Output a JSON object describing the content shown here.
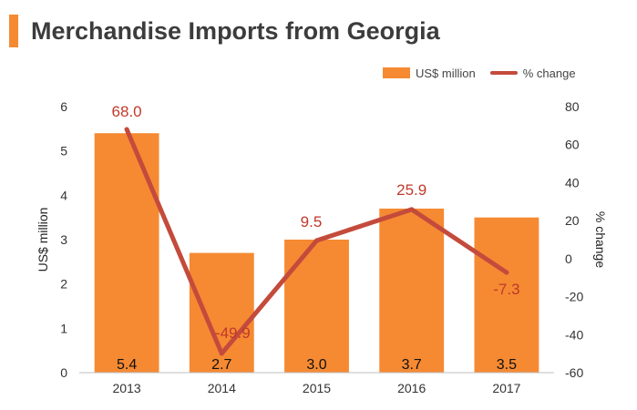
{
  "title": "Merchandise Imports from Georgia",
  "legend": {
    "bar_label": "US$ million",
    "line_label": "% change"
  },
  "colors": {
    "accent": "#f58a33",
    "bar": "#f58a33",
    "line": "#c44b3c",
    "line_label": "#c0392b"
  },
  "chart_data": {
    "type": "bar",
    "categories": [
      "2013",
      "2014",
      "2015",
      "2016",
      "2017"
    ],
    "series": [
      {
        "name": "US$ million",
        "type": "bar",
        "axis": "left",
        "values": [
          5.4,
          2.7,
          3.0,
          3.7,
          3.5
        ]
      },
      {
        "name": "% change",
        "type": "line",
        "axis": "right",
        "values": [
          68.0,
          -49.9,
          9.5,
          25.9,
          -7.3
        ]
      }
    ],
    "bar_labels": [
      "5.4",
      "2.7",
      "3.0",
      "3.7",
      "3.5"
    ],
    "line_labels": [
      "68.0",
      "-49.9",
      "9.5",
      "25.9",
      "-7.3"
    ],
    "ylabel": "US$ million",
    "ylabel_right": "% change",
    "ylim": [
      0,
      6
    ],
    "ylim_right": [
      -60,
      80
    ],
    "yticks": [
      "0",
      "1",
      "2",
      "3",
      "4",
      "5",
      "6"
    ],
    "yticks_right": [
      "-60",
      "-40",
      "-20",
      "0",
      "20",
      "40",
      "60",
      "80"
    ],
    "grid": false,
    "legend_position": "top-right"
  }
}
